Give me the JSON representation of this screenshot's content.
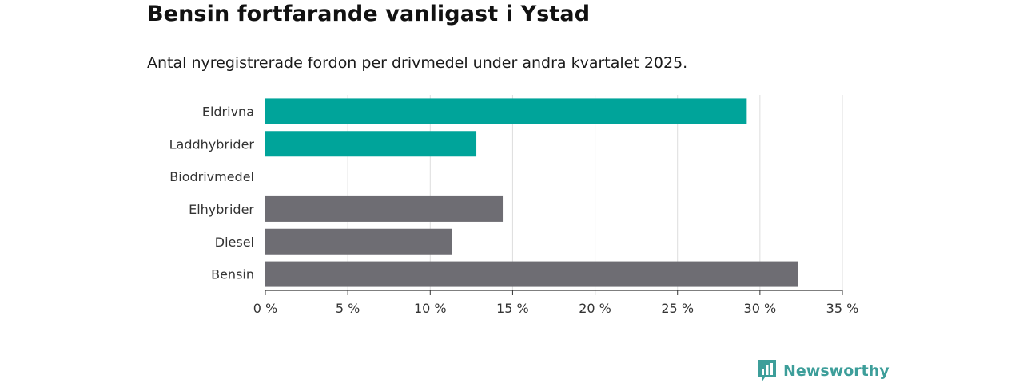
{
  "title": "Bensin fortfarande vanligast i Ystad",
  "subtitle": "Antal nyregistrerade fordon per drivmedel under andra kvartalet 2025.",
  "brand": {
    "name": "Newsworthy",
    "icon": "newsworthy-logo-icon",
    "color": "#3d9e9a"
  },
  "colors": {
    "highlight": "#00a49a",
    "default": "#6e6d73",
    "grid": "#dddddd",
    "axis": "#333333"
  },
  "chart_data": {
    "type": "bar",
    "orientation": "horizontal",
    "categories": [
      "Eldrivna",
      "Laddhybrider",
      "Biodrivmedel",
      "Elhybrider",
      "Diesel",
      "Bensin"
    ],
    "values": [
      29.2,
      12.8,
      0,
      14.4,
      11.3,
      32.3
    ],
    "highlight": [
      true,
      true,
      true,
      false,
      false,
      false
    ],
    "xlim": [
      0,
      35
    ],
    "xticks": [
      0,
      5,
      10,
      15,
      20,
      25,
      30,
      35
    ],
    "xtick_labels": [
      "0 %",
      "5 %",
      "10 %",
      "15 %",
      "20 %",
      "25 %",
      "30 %",
      "35 %"
    ],
    "grid": true
  }
}
